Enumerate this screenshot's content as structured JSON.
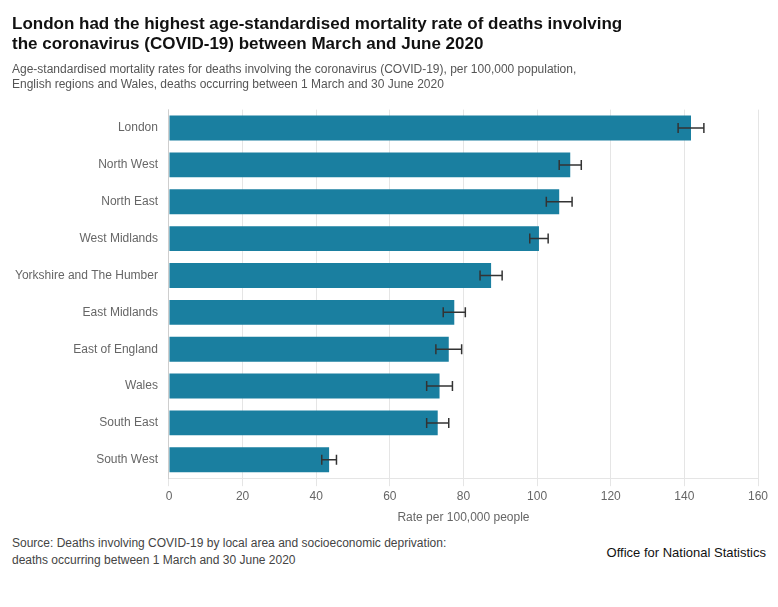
{
  "chart_data": {
    "type": "bar",
    "orientation": "horizontal",
    "title": [
      "London had the highest age-standardised mortality rate of deaths involving",
      "the coronavirus (COVID-19) between March and June 2020"
    ],
    "subtitle": [
      "Age-standardised mortality rates for deaths involving the coronavirus (COVID-19), per 100,000 population,",
      "English regions and Wales, deaths occurring between 1 March and 30 June 2020"
    ],
    "categories": [
      "London",
      "North West",
      "North East",
      "West Midlands",
      "Yorkshire and The Humber",
      "East Midlands",
      "East of England",
      "Wales",
      "South East",
      "South West"
    ],
    "values": [
      141.8,
      109.0,
      106.0,
      100.5,
      87.5,
      77.5,
      76.0,
      73.5,
      73.0,
      43.5
    ],
    "errors": [
      3.5,
      3.0,
      3.5,
      2.5,
      3.0,
      3.0,
      3.5,
      3.5,
      3.0,
      2.0
    ],
    "color": "#1a7fa0",
    "xlabel": "Rate per 100,000 people",
    "xlim": [
      0,
      160
    ],
    "xticks": [
      0,
      20,
      40,
      60,
      80,
      100,
      120,
      140,
      160
    ],
    "grid": true,
    "annotations": [
      "Source: Deaths involving COVID-19 by local area and socioeconomic deprivation:",
      "deaths occurring between 1 March and 30 June 2020",
      "Office for National Statistics"
    ]
  }
}
